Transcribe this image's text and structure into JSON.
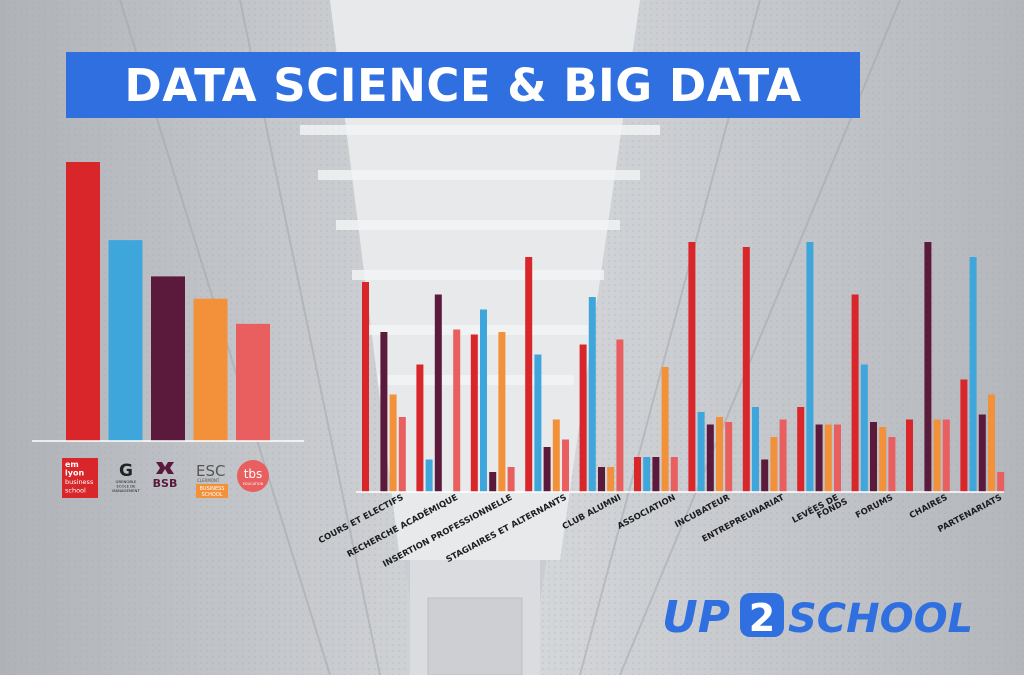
{
  "title": "DATA SCIENCE & BIG DATA",
  "brand": {
    "prefix": "UP",
    "digit": "2",
    "suffix": "SCHOOL"
  },
  "colors": {
    "emlyon": "#d8262b",
    "grenoble": "#3fa6dc",
    "bsb": "#5b1a3c",
    "esc_clermont": "#f3913a",
    "tbs": "#e95e5e",
    "title_bg": "#2f6fe0",
    "brand": "#2f6fe0"
  },
  "schools": [
    {
      "key": "emlyon",
      "logo_lines": [
        "em",
        "lyon",
        "business",
        "school"
      ],
      "icon": "emlyon-logo"
    },
    {
      "key": "grenoble",
      "logo_lines": [
        "G",
        "GRENOBLE",
        "ECOLE DE",
        "MANAGEMENT"
      ],
      "icon": "grenoble-logo"
    },
    {
      "key": "bsb",
      "logo_lines": [
        "BSB"
      ],
      "icon": "bsb-logo"
    },
    {
      "key": "esc_clermont",
      "logo_lines": [
        "ESC",
        "CLERMONT",
        "BUSINESS",
        "SCHOOL"
      ],
      "icon": "esc-clermont-logo"
    },
    {
      "key": "tbs",
      "logo_lines": [
        "tbs",
        "EDUCATION"
      ],
      "icon": "tbs-logo"
    }
  ],
  "chart_data": [
    {
      "type": "bar",
      "categories": [
        "emlyon business school",
        "Grenoble Ecole de Management",
        "BSB",
        "ESC Clermont Business School",
        "TBS Education"
      ],
      "values": [
        100,
        72,
        59,
        51,
        42
      ],
      "ylim": [
        0,
        100
      ]
    },
    {
      "type": "bar",
      "categories": [
        "COURS ET ELECTIFS",
        "RECHERCHE ACADÉMIQUE",
        "INSERTION PROFESSIONNELLE",
        "STAGIAIRES ET ALTERNANTS",
        "CLUB ALUMNI",
        "ASSOCIATION",
        "INCUBATEUR",
        "ENTREPREUNARIAT",
        "LEVÉES DE FONDS",
        "FORUMS",
        "CHAIRES",
        "PARTENARIATS"
      ],
      "series": [
        {
          "key": "emlyon",
          "values": [
            84,
            51,
            63,
            94,
            59,
            14,
            100,
            98,
            34,
            79,
            29,
            45
          ]
        },
        {
          "key": "grenoble",
          "values": [
            0,
            13,
            73,
            55,
            78,
            14,
            32,
            34,
            100,
            51,
            0,
            94
          ]
        },
        {
          "key": "bsb",
          "values": [
            64,
            79,
            8,
            18,
            10,
            14,
            27,
            13,
            27,
            28,
            100,
            31
          ]
        },
        {
          "key": "esc_clermont",
          "values": [
            39,
            0,
            64,
            29,
            10,
            50,
            30,
            22,
            27,
            26,
            29,
            39
          ]
        },
        {
          "key": "tbs",
          "values": [
            30,
            65,
            10,
            21,
            61,
            14,
            28,
            29,
            27,
            22,
            29,
            8
          ]
        }
      ],
      "ylim": [
        0,
        100
      ]
    }
  ]
}
